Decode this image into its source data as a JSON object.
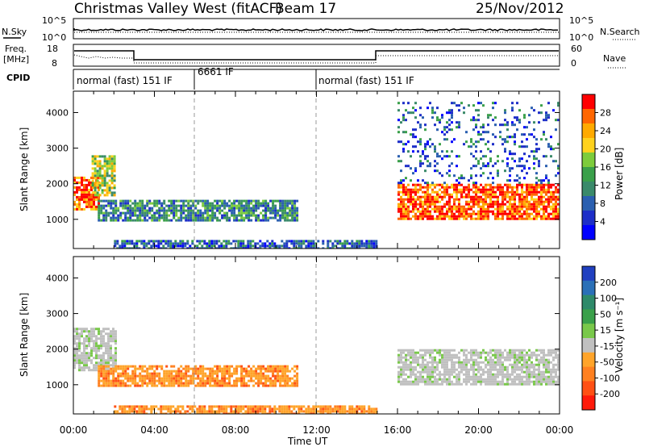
{
  "header": {
    "title": "Christmas Valley West (fitACF)",
    "beam": "Beam 17",
    "date": "25/Nov/2012"
  },
  "top_panels": {
    "nsky_label": "N.Sky",
    "nsearch_label": "N.Search",
    "nsky_ticks": [
      "10^5",
      "10^0"
    ],
    "nsearch_ticks": [
      "10^5",
      "10^0"
    ],
    "freq_label_line1": "Freq.",
    "freq_label_line2": "[MHz]",
    "freq_ticks": [
      "18",
      "8"
    ],
    "nave_label": "Nave",
    "nave_ticks": [
      "60",
      "0"
    ],
    "cpid_label": "CPID",
    "cpid_segments": [
      {
        "label": "normal (fast) 151 IF",
        "start": 0,
        "end": 6
      },
      {
        "label": "6661 IF",
        "start": 6,
        "end": 12
      },
      {
        "label": "normal (fast) 151 IF",
        "start": 12,
        "end": 24
      }
    ]
  },
  "chart_data": [
    {
      "type": "heatmap",
      "name": "power-panel",
      "ylabel": "Slant Range [km]",
      "y_ticks": [
        1000,
        2000,
        3000,
        4000
      ],
      "ylim": [
        180,
        4600
      ],
      "xlim": [
        0,
        24
      ],
      "colorbar_label": "Power [dB]",
      "colorbar_ticks": [
        "28",
        "24",
        "20",
        "16",
        "12",
        "8",
        "4"
      ],
      "colorbar_colors": [
        "#ff0000",
        "#ff6600",
        "#ffaa00",
        "#ffd21e",
        "#7dcc3c",
        "#3aa04a",
        "#3a8a6a",
        "#2a5fb0",
        "#1d2ec8",
        "#0000ff"
      ],
      "features": [
        {
          "name": "early-echo",
          "t0": 0.0,
          "t1": 1.3,
          "r0": 1300,
          "r1": 2200,
          "level": "high"
        },
        {
          "name": "rising-arm",
          "t0": 0.9,
          "t1": 2.0,
          "r0": 1700,
          "r1": 2800,
          "level": "medium"
        },
        {
          "name": "daytime-band",
          "t0": 1.2,
          "t1": 11.0,
          "r0": 950,
          "r1": 1550,
          "level": "low-medium"
        },
        {
          "name": "ground-scatter-floor",
          "t0": 2.0,
          "t1": 15.0,
          "r0": 200,
          "r1": 420,
          "level": "low"
        },
        {
          "name": "evening-strong-band",
          "t0": 16.0,
          "t1": 24.0,
          "r0": 1000,
          "r1": 2000,
          "level": "high"
        },
        {
          "name": "night-sparse",
          "t0": 16.0,
          "t1": 24.0,
          "r0": 2000,
          "r1": 4300,
          "level": "low"
        }
      ]
    },
    {
      "type": "heatmap",
      "name": "velocity-panel",
      "ylabel": "Slant Range [km]",
      "y_ticks": [
        1000,
        2000,
        3000,
        4000
      ],
      "ylim": [
        180,
        4600
      ],
      "xlim": [
        0,
        24
      ],
      "colorbar_label": "Velocity [m s⁻¹]",
      "colorbar_ticks": [
        "200",
        "100",
        "50",
        "15",
        "-15",
        "-50",
        "-100",
        "-200"
      ],
      "colorbar_colors": [
        "#2040c0",
        "#2a70b8",
        "#2e8a6a",
        "#3aa04a",
        "#79c84a",
        "#c0c0c0",
        "#ffa42a",
        "#ff8020",
        "#ff5014",
        "#ff1a0a"
      ],
      "features": [
        {
          "name": "early-grey",
          "t0": 0.0,
          "t1": 2.1,
          "r0": 1400,
          "r1": 2600,
          "level": "zero"
        },
        {
          "name": "daytime-orange",
          "t0": 1.2,
          "t1": 11.0,
          "r0": 950,
          "r1": 1550,
          "level": "negative"
        },
        {
          "name": "floor-orange",
          "t0": 2.0,
          "t1": 15.0,
          "r0": 200,
          "r1": 420,
          "level": "negative"
        },
        {
          "name": "evening-grey",
          "t0": 16.0,
          "t1": 24.0,
          "r0": 1000,
          "r1": 2000,
          "level": "zero"
        }
      ]
    }
  ],
  "x_axis": {
    "ticks": [
      "00:00",
      "04:00",
      "08:00",
      "12:00",
      "16:00",
      "20:00",
      "00:00"
    ],
    "tick_hours": [
      0,
      4,
      8,
      12,
      16,
      20,
      24
    ],
    "label": "Time UT"
  }
}
